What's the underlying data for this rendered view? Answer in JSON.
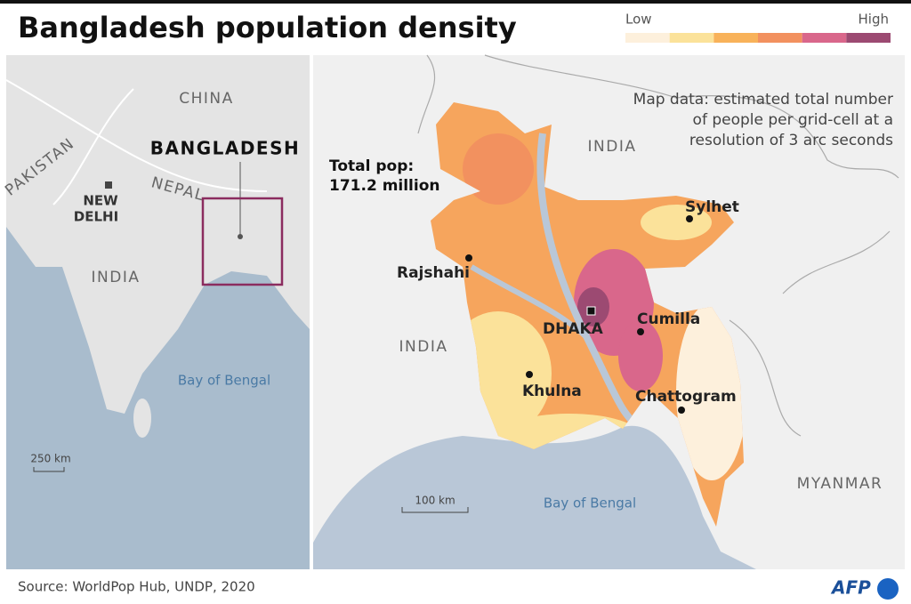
{
  "header": {
    "title": "Bangladesh population density",
    "legend": {
      "low": "Low",
      "high": "High",
      "colors": [
        "#fdf0dc",
        "#fbe29a",
        "#f8b25a",
        "#f2915f",
        "#d9678b",
        "#9c4a72"
      ]
    }
  },
  "inset": {
    "china": "CHINA",
    "pakistan": "PAKISTAN",
    "nepal": "NEPAL",
    "capital": [
      "NEW",
      "DELHI"
    ],
    "country": "BANGLADESH",
    "india": "INDIA",
    "sea": "Bay of Bengal",
    "scale": "250 km"
  },
  "main": {
    "note": [
      "Map data: estimated total number",
      "of people per grid-cell at a",
      "resolution of 3 arc seconds"
    ],
    "total": [
      "Total pop:",
      "171.2 million"
    ],
    "india_north": "INDIA",
    "india_west": "INDIA",
    "myanmar": "MYANMAR",
    "sea": "Bay of Bengal",
    "scale": "100 km",
    "cities": [
      "Sylhet",
      "Rajshahi",
      "DHAKA",
      "Cumilla",
      "Khulna",
      "Chattogram"
    ]
  },
  "footer": {
    "source": "Source: WorldPop Hub, UNDP, 2020",
    "logo": "AFP"
  }
}
